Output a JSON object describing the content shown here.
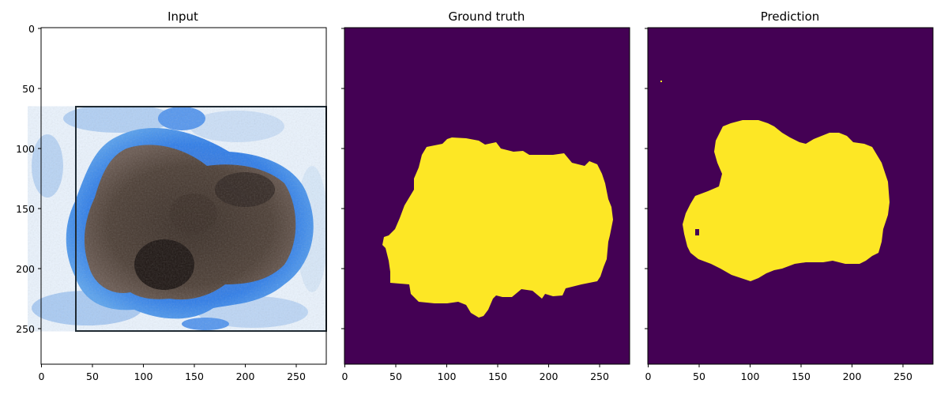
{
  "figure": {
    "panels": [
      {
        "id": "input",
        "title": "Input",
        "kind": "dermoscopy-image",
        "x_ticks": [
          "0",
          "50",
          "100",
          "150",
          "200",
          "250"
        ],
        "y_ticks": [
          "0",
          "50",
          "100",
          "150",
          "200",
          "250"
        ]
      },
      {
        "id": "ground-truth",
        "title": "Ground truth",
        "kind": "segmentation-mask",
        "x_ticks": [
          "0",
          "50",
          "100",
          "150",
          "200",
          "250"
        ]
      },
      {
        "id": "prediction",
        "title": "Prediction",
        "kind": "segmentation-mask",
        "x_ticks": [
          "0",
          "50",
          "100",
          "150",
          "200",
          "250"
        ]
      }
    ],
    "axis_range": {
      "x": [
        0,
        280
      ],
      "y": [
        0,
        280
      ]
    },
    "colors": {
      "mask_background": "#440154",
      "mask_foreground": "#fde725",
      "skin_blue": "#2f7de8",
      "lesion_dark": "#2b211c",
      "lesion_brown": "#5a4a3f"
    }
  }
}
